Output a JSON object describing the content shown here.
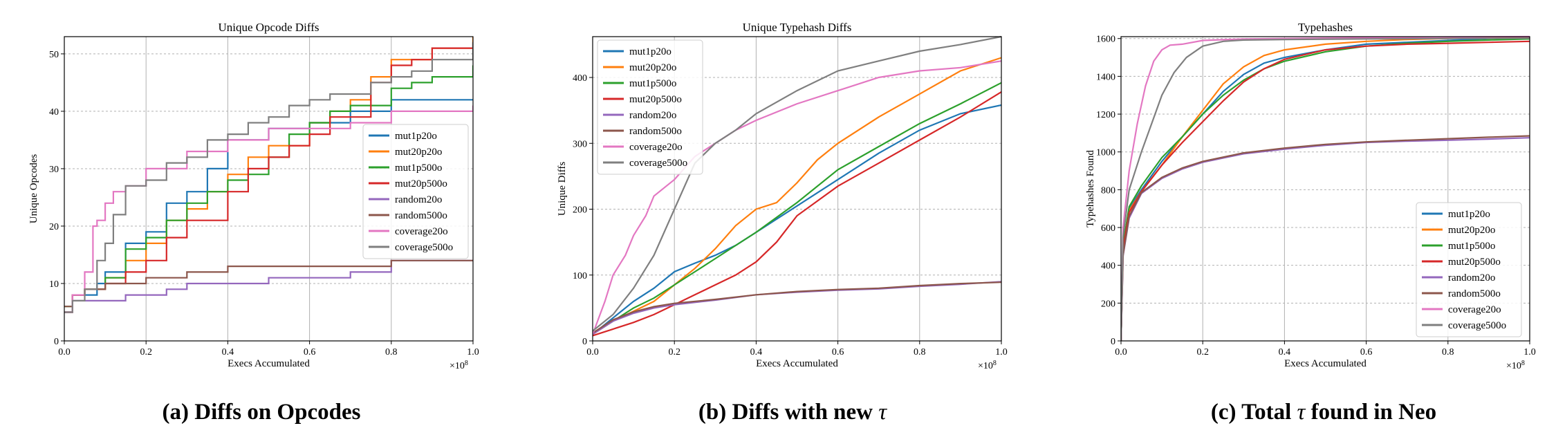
{
  "colors": {
    "mut1p20o": "#1f77b4",
    "mut20p20o": "#ff7f0e",
    "mut1p500o": "#2ca02c",
    "mut20p500o": "#d62728",
    "random20o": "#9467bd",
    "random500o": "#8c564b",
    "coverage20o": "#e377c2",
    "coverage500o": "#7f7f7f"
  },
  "captions": {
    "a": {
      "prefix": "(a) Diffs on Opcodes",
      "symbol": ""
    },
    "b": {
      "prefix": "(b) Diffs with new ",
      "symbol": "τ"
    },
    "c": {
      "prefix": "(c) Total ",
      "symbol": "τ",
      "suffix": " found in Neo"
    }
  },
  "chart_data": [
    {
      "type": "line",
      "title": "Unique Opcode Diffs",
      "xlabel": "Execs Accumulated",
      "ylabel": "Unique Opcodes",
      "x_scale_note": "×10^8",
      "xlim": [
        0,
        1.0
      ],
      "ylim": [
        0,
        53
      ],
      "xticks": [
        "0.0",
        "0.2",
        "0.4",
        "0.6",
        "0.8",
        "1.0"
      ],
      "yticks": [
        0,
        10,
        20,
        30,
        40,
        50
      ],
      "legend": "center-right",
      "series": [
        {
          "name": "mut1p20o",
          "x": [
            0,
            0.02,
            0.05,
            0.08,
            0.1,
            0.15,
            0.2,
            0.25,
            0.3,
            0.35,
            0.4,
            0.5,
            0.55,
            0.6,
            0.65,
            0.7,
            0.8,
            0.9,
            1.0
          ],
          "y": [
            5,
            8,
            8,
            10,
            12,
            17,
            19,
            24,
            26,
            30,
            35,
            37,
            37,
            38,
            38,
            40,
            42,
            42,
            42
          ]
        },
        {
          "name": "mut20p20o",
          "x": [
            0,
            0.02,
            0.05,
            0.1,
            0.15,
            0.2,
            0.25,
            0.3,
            0.35,
            0.4,
            0.45,
            0.5,
            0.55,
            0.6,
            0.65,
            0.7,
            0.75,
            0.8,
            0.85,
            0.9,
            1.0
          ],
          "y": [
            5,
            8,
            9,
            11,
            14,
            17,
            21,
            23,
            26,
            29,
            32,
            34,
            34,
            38,
            40,
            42,
            46,
            49,
            49,
            51,
            53
          ]
        },
        {
          "name": "mut1p500o",
          "x": [
            0,
            0.02,
            0.05,
            0.1,
            0.15,
            0.2,
            0.25,
            0.3,
            0.35,
            0.4,
            0.45,
            0.5,
            0.55,
            0.6,
            0.65,
            0.7,
            0.75,
            0.8,
            0.85,
            0.9,
            1.0
          ],
          "y": [
            6,
            8,
            9,
            11,
            16,
            18,
            21,
            24,
            26,
            28,
            29,
            32,
            36,
            38,
            40,
            41,
            41,
            44,
            45,
            46,
            48
          ]
        },
        {
          "name": "mut20p500o",
          "x": [
            0,
            0.02,
            0.05,
            0.1,
            0.15,
            0.2,
            0.25,
            0.3,
            0.35,
            0.4,
            0.45,
            0.5,
            0.55,
            0.6,
            0.65,
            0.7,
            0.75,
            0.8,
            0.85,
            0.9,
            1.0
          ],
          "y": [
            5,
            8,
            9,
            10,
            12,
            14,
            18,
            21,
            21,
            26,
            30,
            32,
            34,
            36,
            39,
            39,
            45,
            48,
            49,
            51,
            52
          ]
        },
        {
          "name": "random20o",
          "x": [
            0,
            0.02,
            0.06,
            0.1,
            0.15,
            0.2,
            0.25,
            0.3,
            0.4,
            0.5,
            0.6,
            0.7,
            0.79,
            0.8,
            1.0
          ],
          "y": [
            5,
            7,
            7,
            7,
            8,
            8,
            9,
            10,
            10,
            11,
            11,
            12,
            12,
            14,
            14
          ]
        },
        {
          "name": "random500o",
          "x": [
            0,
            0.02,
            0.05,
            0.1,
            0.2,
            0.3,
            0.35,
            0.4,
            0.5,
            0.6,
            0.7,
            0.8,
            0.9,
            1.0
          ],
          "y": [
            6,
            8,
            9,
            10,
            11,
            12,
            12,
            13,
            13,
            13,
            13,
            14,
            14,
            14
          ]
        },
        {
          "name": "coverage20o",
          "x": [
            0,
            0.02,
            0.05,
            0.07,
            0.08,
            0.1,
            0.12,
            0.15,
            0.2,
            0.3,
            0.4,
            0.5,
            0.6,
            0.7,
            0.8,
            0.9,
            1.0
          ],
          "y": [
            5,
            8,
            12,
            20,
            21,
            24,
            26,
            27,
            30,
            33,
            35,
            37,
            37,
            38,
            40,
            40,
            41
          ]
        },
        {
          "name": "coverage500o",
          "x": [
            0,
            0.02,
            0.05,
            0.08,
            0.1,
            0.12,
            0.15,
            0.2,
            0.25,
            0.3,
            0.35,
            0.4,
            0.45,
            0.5,
            0.55,
            0.6,
            0.65,
            0.7,
            0.75,
            0.8,
            0.85,
            0.9,
            1.0
          ],
          "y": [
            5,
            7,
            9,
            14,
            17,
            22,
            27,
            28,
            31,
            32,
            35,
            36,
            38,
            39,
            41,
            42,
            43,
            43,
            45,
            46,
            47,
            49,
            52
          ]
        }
      ]
    },
    {
      "type": "line",
      "title": "Unique Typehash Diffs",
      "xlabel": "Execs Accumulated",
      "ylabel": "Unique Diffs",
      "x_scale_note": "×10^8",
      "xlim": [
        0,
        1.0
      ],
      "ylim": [
        0,
        462
      ],
      "xticks": [
        "0.0",
        "0.2",
        "0.4",
        "0.6",
        "0.8",
        "1.0"
      ],
      "yticks": [
        0,
        100,
        200,
        300,
        400
      ],
      "legend": "top-left",
      "series": [
        {
          "name": "mut1p20o",
          "x": [
            0,
            0.05,
            0.1,
            0.15,
            0.2,
            0.25,
            0.3,
            0.35,
            0.4,
            0.5,
            0.6,
            0.7,
            0.8,
            0.9,
            1.0
          ],
          "y": [
            10,
            35,
            60,
            80,
            105,
            118,
            130,
            145,
            165,
            205,
            245,
            285,
            320,
            345,
            358
          ]
        },
        {
          "name": "mut20p20o",
          "x": [
            0,
            0.05,
            0.1,
            0.15,
            0.2,
            0.25,
            0.3,
            0.35,
            0.4,
            0.45,
            0.5,
            0.55,
            0.6,
            0.7,
            0.8,
            0.9,
            1.0
          ],
          "y": [
            10,
            30,
            45,
            60,
            85,
            110,
            140,
            175,
            200,
            210,
            240,
            275,
            300,
            340,
            375,
            410,
            430
          ]
        },
        {
          "name": "mut1p500o",
          "x": [
            0,
            0.05,
            0.1,
            0.15,
            0.2,
            0.25,
            0.3,
            0.4,
            0.5,
            0.6,
            0.7,
            0.8,
            0.9,
            1.0
          ],
          "y": [
            12,
            30,
            50,
            65,
            85,
            105,
            125,
            165,
            210,
            260,
            295,
            330,
            360,
            392
          ]
        },
        {
          "name": "mut20p500o",
          "x": [
            0,
            0.05,
            0.1,
            0.15,
            0.2,
            0.25,
            0.3,
            0.35,
            0.4,
            0.45,
            0.5,
            0.6,
            0.7,
            0.8,
            0.9,
            1.0
          ],
          "y": [
            8,
            18,
            28,
            40,
            55,
            70,
            85,
            100,
            120,
            150,
            190,
            235,
            270,
            305,
            340,
            378
          ]
        },
        {
          "name": "random20o",
          "x": [
            0,
            0.05,
            0.1,
            0.15,
            0.2,
            0.3,
            0.4,
            0.5,
            0.6,
            0.7,
            0.8,
            0.9,
            1.0
          ],
          "y": [
            10,
            30,
            42,
            50,
            55,
            62,
            70,
            74,
            77,
            79,
            83,
            86,
            90
          ]
        },
        {
          "name": "random500o",
          "x": [
            0,
            0.05,
            0.1,
            0.15,
            0.2,
            0.3,
            0.4,
            0.5,
            0.6,
            0.7,
            0.8,
            0.9,
            1.0
          ],
          "y": [
            12,
            32,
            44,
            52,
            57,
            63,
            70,
            75,
            78,
            80,
            84,
            87,
            89
          ]
        },
        {
          "name": "coverage20o",
          "x": [
            0,
            0.03,
            0.05,
            0.08,
            0.1,
            0.13,
            0.15,
            0.18,
            0.2,
            0.25,
            0.3,
            0.35,
            0.4,
            0.5,
            0.6,
            0.7,
            0.8,
            0.9,
            1.0
          ],
          "y": [
            10,
            60,
            100,
            130,
            160,
            190,
            220,
            235,
            245,
            280,
            300,
            320,
            335,
            360,
            380,
            400,
            410,
            415,
            425
          ]
        },
        {
          "name": "coverage500o",
          "x": [
            0,
            0.05,
            0.1,
            0.15,
            0.2,
            0.25,
            0.3,
            0.35,
            0.4,
            0.5,
            0.6,
            0.7,
            0.8,
            0.9,
            1.0
          ],
          "y": [
            15,
            40,
            80,
            130,
            200,
            270,
            300,
            320,
            345,
            380,
            410,
            425,
            440,
            450,
            462
          ]
        }
      ]
    },
    {
      "type": "line",
      "title": "Typehashes",
      "xlabel": "Execs Accumulated",
      "ylabel": "Typehashes Found",
      "x_scale_note": "×10^8",
      "xlim": [
        0,
        1.0
      ],
      "ylim": [
        0,
        1610
      ],
      "xticks": [
        "0.0",
        "0.2",
        "0.4",
        "0.6",
        "0.8",
        "1.0"
      ],
      "yticks": [
        0,
        200,
        400,
        600,
        800,
        1000,
        1200,
        1400,
        1600
      ],
      "legend": "bottom-right",
      "series": [
        {
          "name": "mut1p20o",
          "x": [
            0,
            0.005,
            0.02,
            0.05,
            0.1,
            0.15,
            0.2,
            0.25,
            0.3,
            0.35,
            0.4,
            0.5,
            0.6,
            0.7,
            0.8,
            0.9,
            1.0
          ],
          "y": [
            0,
            500,
            700,
            800,
            950,
            1080,
            1200,
            1320,
            1410,
            1470,
            1500,
            1540,
            1570,
            1580,
            1590,
            1600,
            1605
          ]
        },
        {
          "name": "mut20p20o",
          "x": [
            0,
            0.005,
            0.02,
            0.05,
            0.1,
            0.15,
            0.2,
            0.25,
            0.3,
            0.35,
            0.4,
            0.5,
            0.6,
            0.7,
            0.8,
            0.9,
            1.0
          ],
          "y": [
            0,
            500,
            690,
            790,
            930,
            1080,
            1220,
            1360,
            1450,
            1510,
            1540,
            1570,
            1585,
            1595,
            1600,
            1605,
            1608
          ]
        },
        {
          "name": "mut1p500o",
          "x": [
            0,
            0.005,
            0.02,
            0.05,
            0.1,
            0.15,
            0.2,
            0.25,
            0.3,
            0.35,
            0.4,
            0.5,
            0.6,
            0.7,
            0.8,
            0.9,
            1.0
          ],
          "y": [
            0,
            510,
            710,
            820,
            970,
            1080,
            1200,
            1300,
            1380,
            1440,
            1480,
            1530,
            1560,
            1575,
            1585,
            1592,
            1598
          ]
        },
        {
          "name": "mut20p500o",
          "x": [
            0,
            0.005,
            0.02,
            0.05,
            0.1,
            0.15,
            0.2,
            0.25,
            0.3,
            0.35,
            0.4,
            0.5,
            0.6,
            0.7,
            0.8,
            0.9,
            1.0
          ],
          "y": [
            0,
            490,
            680,
            790,
            930,
            1050,
            1160,
            1270,
            1370,
            1440,
            1490,
            1540,
            1560,
            1570,
            1575,
            1580,
            1585
          ]
        },
        {
          "name": "random20o",
          "x": [
            0,
            0.005,
            0.02,
            0.05,
            0.1,
            0.15,
            0.2,
            0.3,
            0.4,
            0.5,
            0.6,
            0.7,
            0.8,
            0.9,
            1.0
          ],
          "y": [
            0,
            450,
            650,
            780,
            860,
            910,
            945,
            990,
            1015,
            1035,
            1050,
            1057,
            1062,
            1068,
            1075
          ]
        },
        {
          "name": "random500o",
          "x": [
            0,
            0.005,
            0.02,
            0.05,
            0.1,
            0.15,
            0.2,
            0.3,
            0.4,
            0.5,
            0.6,
            0.7,
            0.8,
            0.9,
            1.0
          ],
          "y": [
            0,
            455,
            660,
            785,
            865,
            915,
            950,
            995,
            1020,
            1040,
            1053,
            1062,
            1070,
            1078,
            1085
          ]
        },
        {
          "name": "coverage20o",
          "x": [
            0,
            0.005,
            0.02,
            0.04,
            0.06,
            0.08,
            0.1,
            0.12,
            0.15,
            0.2,
            0.3,
            0.4,
            0.6,
            0.8,
            1.0
          ],
          "y": [
            0,
            600,
            900,
            1150,
            1350,
            1480,
            1540,
            1565,
            1570,
            1590,
            1598,
            1600,
            1605,
            1608,
            1610
          ]
        },
        {
          "name": "coverage500o",
          "x": [
            0,
            0.005,
            0.02,
            0.05,
            0.08,
            0.1,
            0.13,
            0.16,
            0.2,
            0.25,
            0.3,
            0.4,
            0.6,
            0.8,
            1.0
          ],
          "y": [
            0,
            550,
            800,
            1000,
            1180,
            1300,
            1420,
            1500,
            1560,
            1585,
            1592,
            1595,
            1598,
            1600,
            1602
          ]
        }
      ]
    }
  ]
}
